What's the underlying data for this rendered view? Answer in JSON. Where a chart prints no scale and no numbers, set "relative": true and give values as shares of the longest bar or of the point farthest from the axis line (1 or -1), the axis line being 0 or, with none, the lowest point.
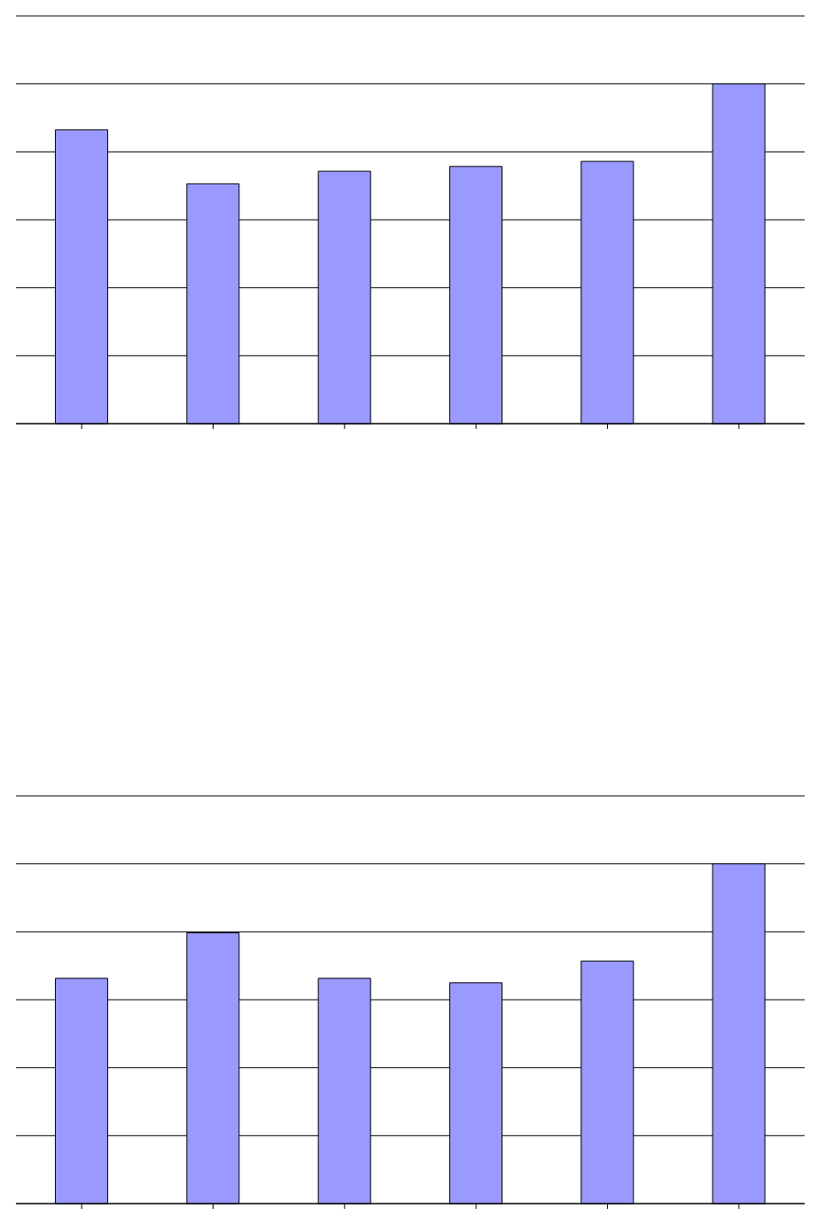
{
  "chart_data": [
    {
      "type": "bar",
      "relative": true,
      "categories": [
        null,
        null,
        null,
        null,
        null,
        null
      ],
      "values": [
        0.865,
        0.706,
        0.743,
        0.757,
        0.772,
        1
      ],
      "color": "#9999ff",
      "grid": "y"
    },
    {
      "type": "bar",
      "relative": true,
      "categories": [
        null,
        null,
        null,
        null,
        null,
        null
      ],
      "values": [
        0.663,
        0.797,
        0.663,
        0.65,
        0.714,
        1
      ],
      "color": "#9999ff",
      "grid": "y"
    }
  ]
}
